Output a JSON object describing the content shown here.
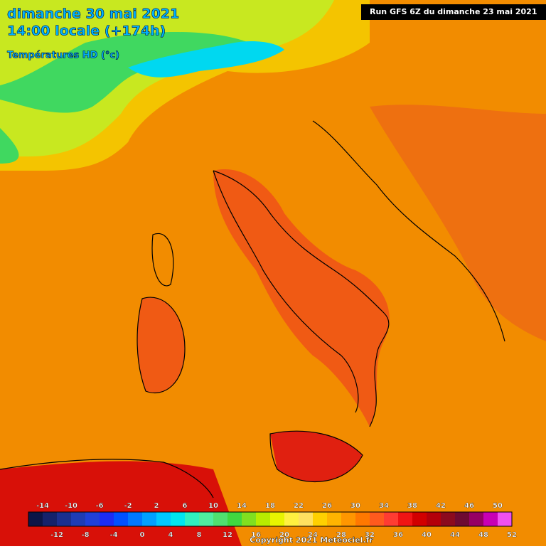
{
  "header": {
    "date": "dimanche 30 mai 2021",
    "time": "14:00 locale (+174h)",
    "field": "Températures HD (°c)",
    "run": "Run GFS 6Z du dimanche 23 mai 2021"
  },
  "scale": {
    "min": -16,
    "step": 2,
    "colors": [
      "#0b1547",
      "#14226b",
      "#1b2f8f",
      "#1f3cb4",
      "#2040d8",
      "#1c2cf4",
      "#0050ff",
      "#0078ff",
      "#00a0ff",
      "#00c8ff",
      "#00e6f0",
      "#30f0c0",
      "#50eca0",
      "#50e070",
      "#40d840",
      "#80e020",
      "#b8ec00",
      "#e8f400",
      "#fff040",
      "#ffe060",
      "#ffd000",
      "#ffb400",
      "#ff9600",
      "#ff7800",
      "#ff5a1e",
      "#ff3c32",
      "#f01414",
      "#d20000",
      "#b4000a",
      "#8c0a1e",
      "#6e0a32",
      "#960064",
      "#c800b4",
      "#f050f0"
    ],
    "ticks": [
      -14,
      -12,
      -10,
      -8,
      -6,
      -4,
      -2,
      0,
      2,
      4,
      6,
      8,
      10,
      12,
      14,
      16,
      18,
      20,
      22,
      24,
      26,
      28,
      30,
      32,
      34,
      36,
      38,
      40,
      42,
      44,
      46,
      48,
      50,
      52
    ]
  },
  "footer": {
    "copyright": "Copyright 2021 Meteociel.fr"
  }
}
